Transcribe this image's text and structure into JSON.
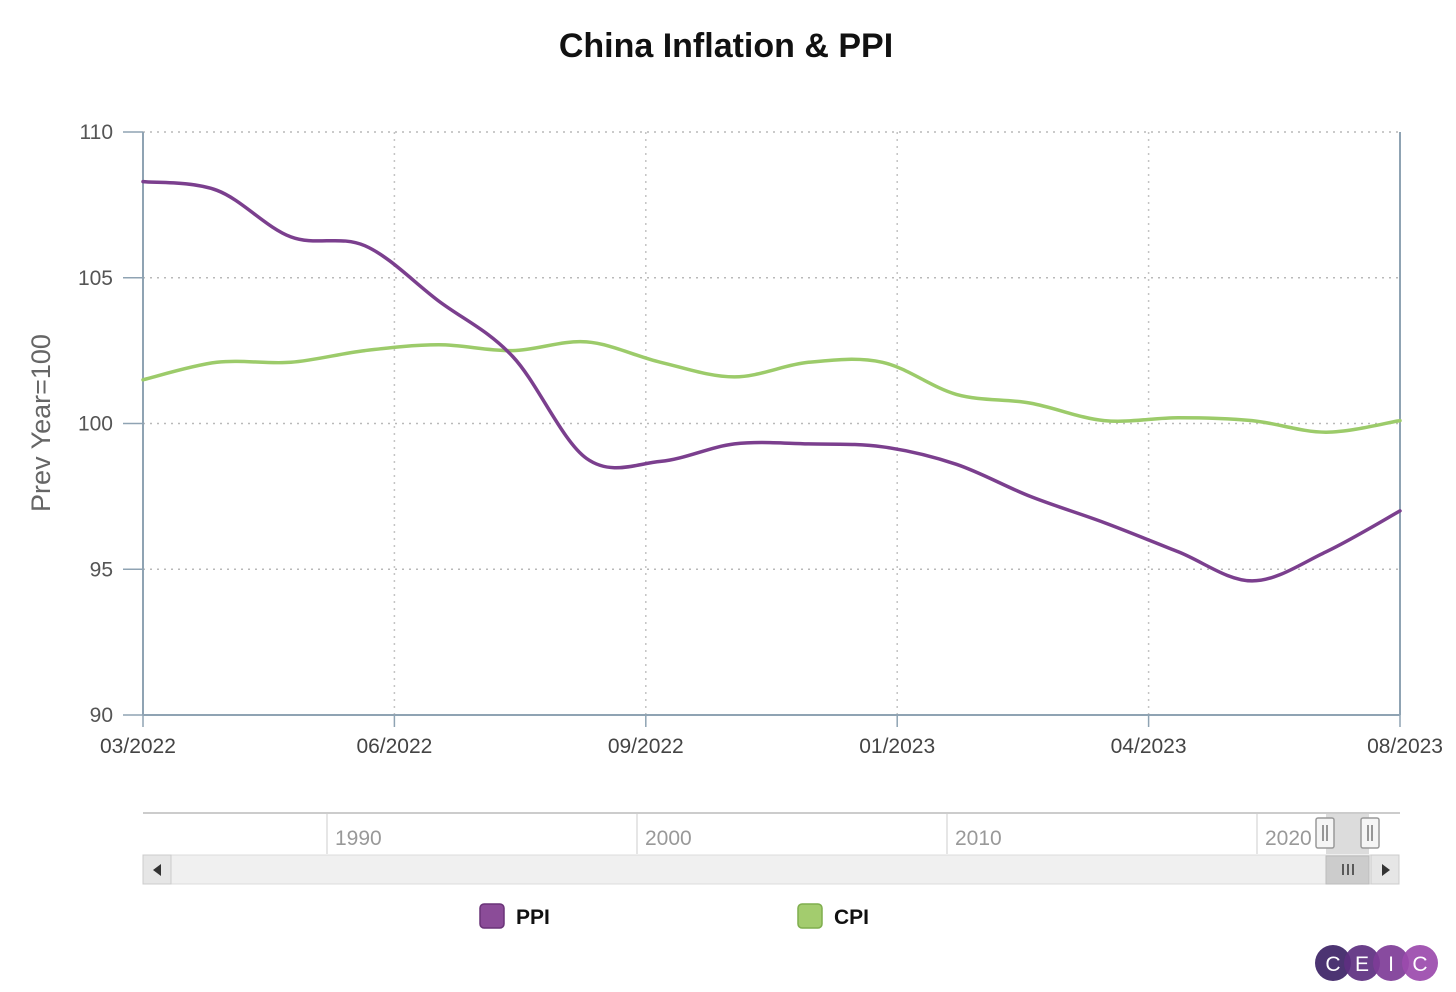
{
  "chart_data": {
    "type": "line",
    "title": "China Inflation & PPI",
    "ylabel": "Prev Year=100",
    "xlabel": "",
    "ylim": [
      90,
      110
    ],
    "yticks": [
      "110",
      "105",
      "100",
      "95",
      "90"
    ],
    "xticks": [
      "03/2022",
      "06/2022",
      "09/2022",
      "01/2023",
      "04/2023",
      "08/2023"
    ],
    "x": [
      "03/2022",
      "04/2022",
      "05/2022",
      "06/2022",
      "07/2022",
      "08/2022",
      "09/2022",
      "10/2022",
      "11/2022",
      "12/2022",
      "01/2023",
      "02/2023",
      "03/2023",
      "04/2023",
      "05/2023",
      "06/2023",
      "07/2023",
      "08/2023"
    ],
    "series": [
      {
        "name": "PPI",
        "color": "#7b3f8e",
        "values": [
          108.3,
          108.0,
          106.4,
          106.1,
          104.2,
          102.3,
          98.8,
          98.7,
          99.3,
          99.3,
          99.2,
          98.6,
          97.5,
          96.6,
          95.6,
          94.6,
          95.6,
          97.0
        ]
      },
      {
        "name": "CPI",
        "color": "#9ccb6a",
        "values": [
          101.5,
          102.1,
          102.1,
          102.5,
          102.7,
          102.5,
          102.8,
          102.1,
          101.6,
          102.1,
          102.1,
          101.0,
          100.7,
          100.1,
          100.2,
          100.1,
          99.7,
          100.1
        ]
      }
    ],
    "grid": true,
    "legend_position": "bottom"
  },
  "navigator": {
    "ticks": [
      "1990",
      "2000",
      "2010",
      "2020"
    ]
  },
  "legend": {
    "items": [
      {
        "label": "PPI",
        "color": "#8b4c98"
      },
      {
        "label": "CPI",
        "color": "#a3cc6e"
      }
    ]
  },
  "brand": {
    "letters": [
      "C",
      "E",
      "I",
      "C"
    ],
    "colors": [
      "#3d2366",
      "#5d2f80",
      "#7e3c97",
      "#9b4aad"
    ]
  }
}
